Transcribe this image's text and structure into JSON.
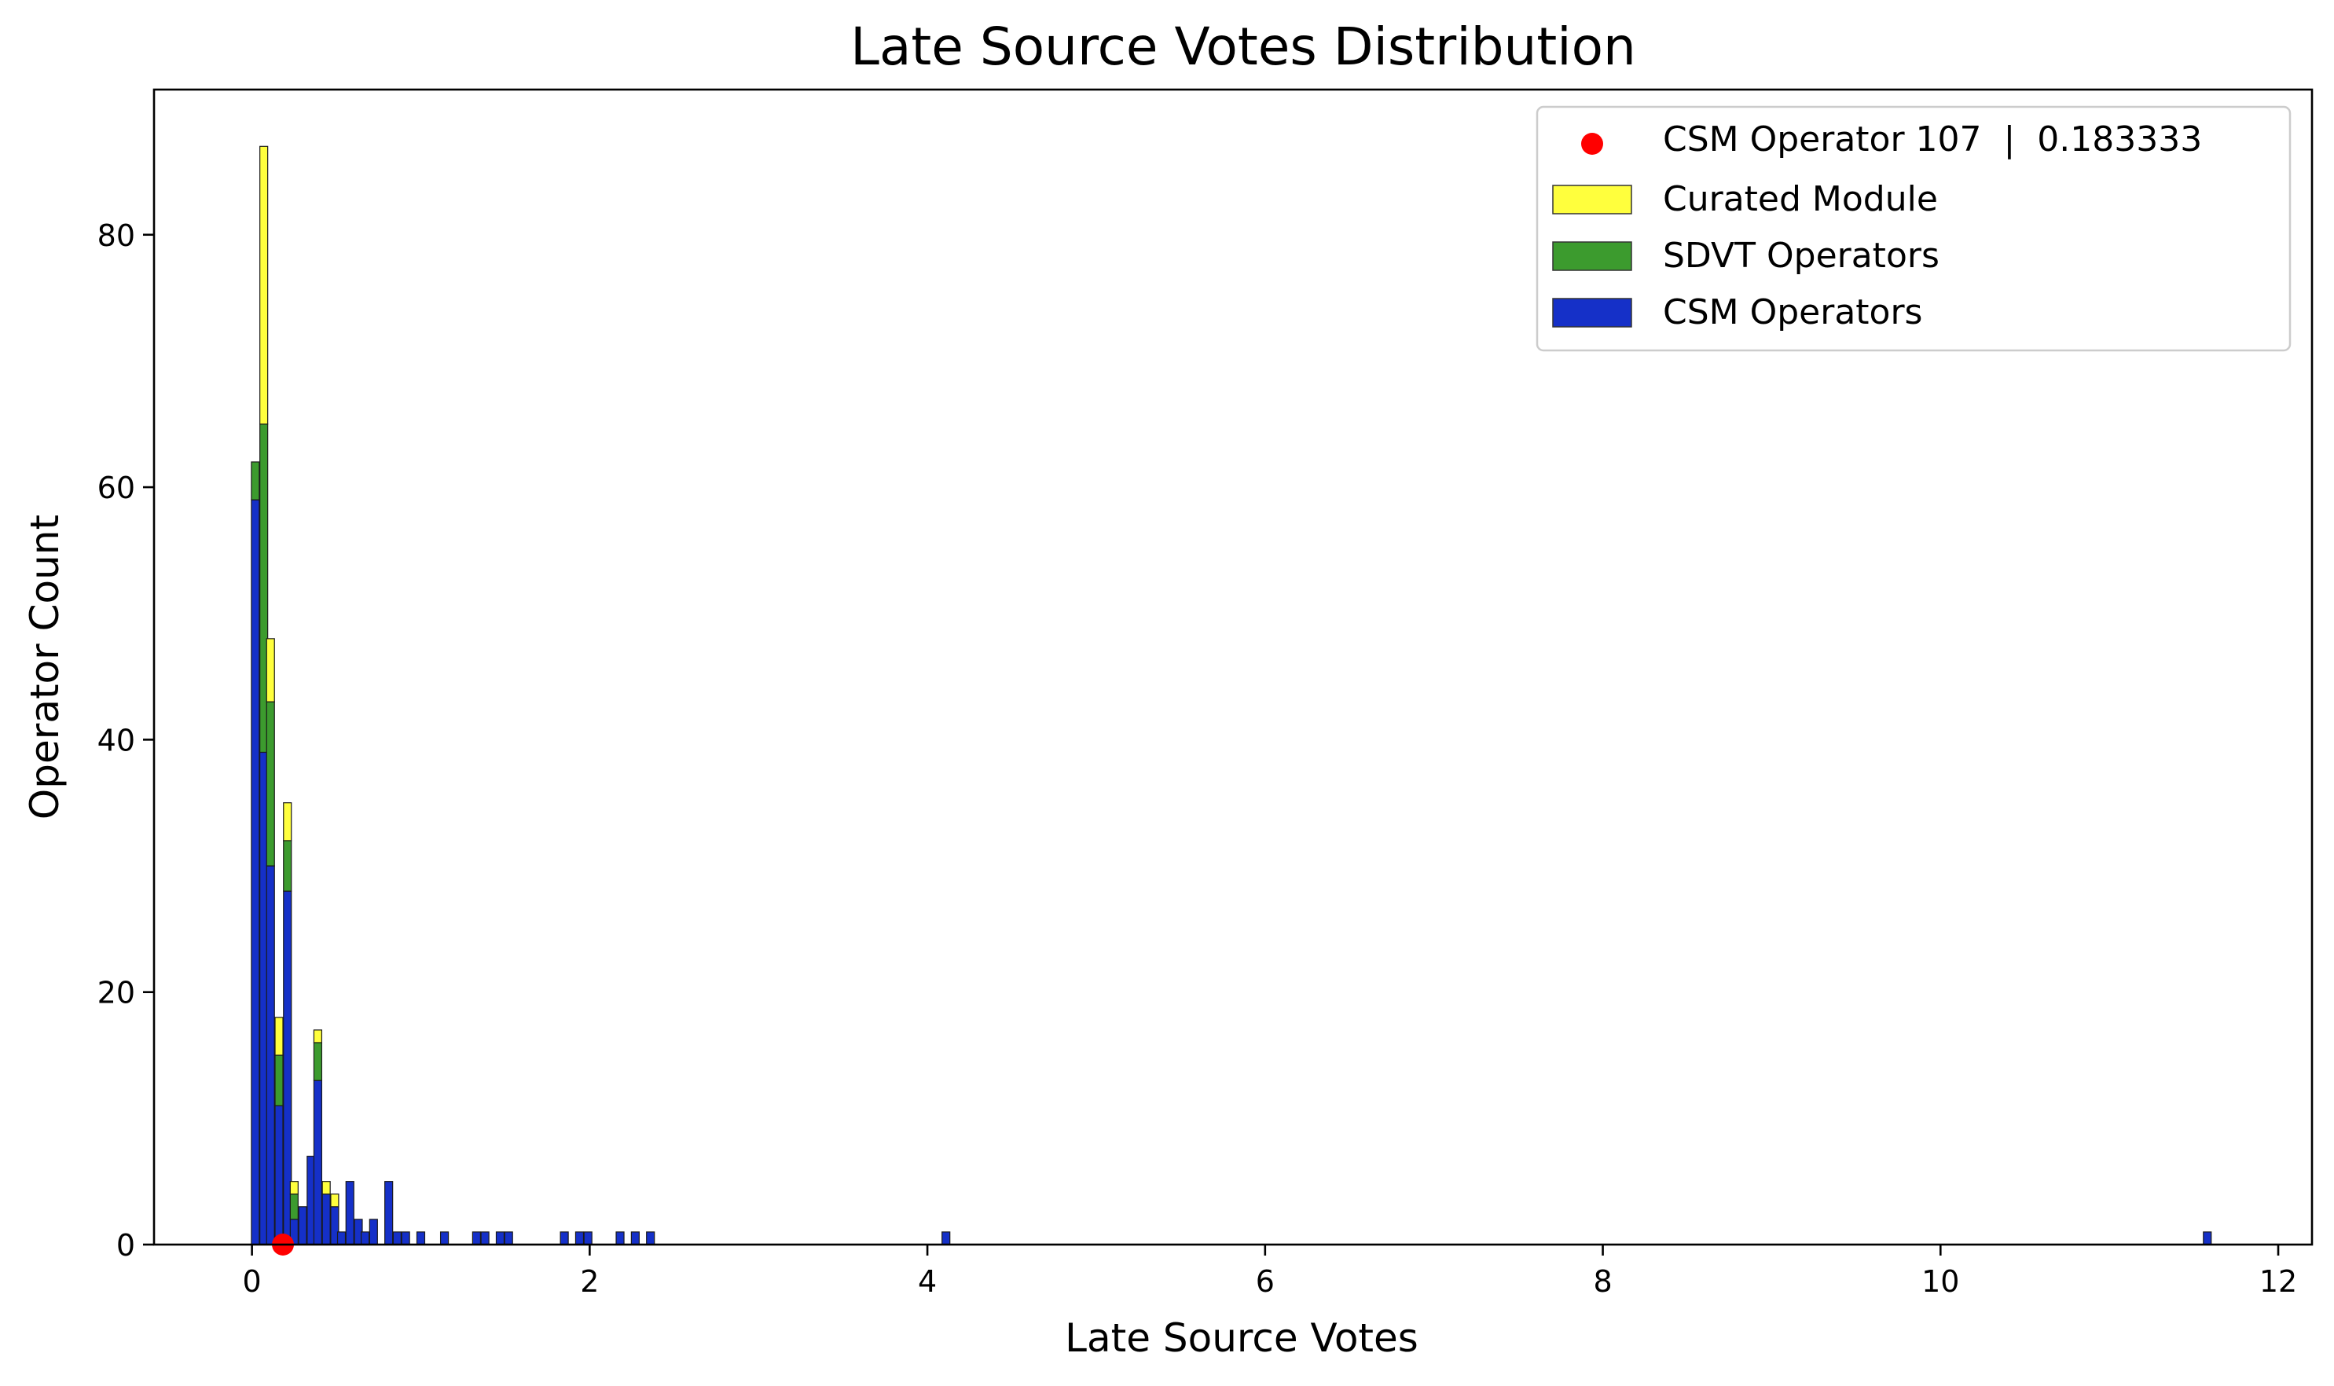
{
  "chart_data": {
    "type": "bar",
    "stacked": true,
    "title": "Late Source Votes Distribution",
    "xlabel": "Late Source Votes",
    "ylabel": "Operator Count",
    "xlim": [
      -0.58,
      12.2
    ],
    "ylim": [
      0,
      91.5
    ],
    "xticks": [
      0,
      2,
      4,
      6,
      8,
      10,
      12
    ],
    "yticks": [
      0,
      20,
      40,
      60,
      80
    ],
    "bin_width": 0.0465,
    "legend_position": "top-right",
    "series": [
      {
        "name": "CSM Operators",
        "color": "#1530c8",
        "bins": [
          {
            "x": 0.02,
            "count": 59
          },
          {
            "x": 0.07,
            "count": 39
          },
          {
            "x": 0.11,
            "count": 30
          },
          {
            "x": 0.16,
            "count": 11
          },
          {
            "x": 0.21,
            "count": 28
          },
          {
            "x": 0.25,
            "count": 2
          },
          {
            "x": 0.3,
            "count": 3
          },
          {
            "x": 0.35,
            "count": 7
          },
          {
            "x": 0.39,
            "count": 13
          },
          {
            "x": 0.44,
            "count": 4
          },
          {
            "x": 0.49,
            "count": 3
          },
          {
            "x": 0.53,
            "count": 1
          },
          {
            "x": 0.58,
            "count": 5
          },
          {
            "x": 0.63,
            "count": 2
          },
          {
            "x": 0.67,
            "count": 1
          },
          {
            "x": 0.72,
            "count": 2
          },
          {
            "x": 0.81,
            "count": 5
          },
          {
            "x": 0.86,
            "count": 1
          },
          {
            "x": 0.91,
            "count": 1
          },
          {
            "x": 1.0,
            "count": 1
          },
          {
            "x": 1.14,
            "count": 1
          },
          {
            "x": 1.33,
            "count": 1
          },
          {
            "x": 1.38,
            "count": 1
          },
          {
            "x": 1.47,
            "count": 1
          },
          {
            "x": 1.52,
            "count": 1
          },
          {
            "x": 1.85,
            "count": 1
          },
          {
            "x": 1.94,
            "count": 1
          },
          {
            "x": 1.99,
            "count": 1
          },
          {
            "x": 2.18,
            "count": 1
          },
          {
            "x": 2.27,
            "count": 1
          },
          {
            "x": 2.36,
            "count": 1
          },
          {
            "x": 4.11,
            "count": 1
          },
          {
            "x": 11.58,
            "count": 1
          }
        ]
      },
      {
        "name": "SDVT Operators",
        "color": "#3c9b2e",
        "bins": [
          {
            "x": 0.02,
            "count": 3
          },
          {
            "x": 0.07,
            "count": 26
          },
          {
            "x": 0.11,
            "count": 13
          },
          {
            "x": 0.16,
            "count": 4
          },
          {
            "x": 0.21,
            "count": 4
          },
          {
            "x": 0.25,
            "count": 2
          },
          {
            "x": 0.39,
            "count": 3
          }
        ]
      },
      {
        "name": "Curated Module",
        "color": "#ffff3d",
        "bins": [
          {
            "x": 0.07,
            "count": 22
          },
          {
            "x": 0.11,
            "count": 5
          },
          {
            "x": 0.16,
            "count": 3
          },
          {
            "x": 0.21,
            "count": 3
          },
          {
            "x": 0.25,
            "count": 1
          },
          {
            "x": 0.39,
            "count": 1
          },
          {
            "x": 0.44,
            "count": 1
          },
          {
            "x": 0.49,
            "count": 1
          }
        ]
      }
    ],
    "highlight": {
      "label": "CSM Operator 107  |  0.183333",
      "x": 0.183333,
      "y": 0,
      "color": "#ff0000"
    }
  }
}
